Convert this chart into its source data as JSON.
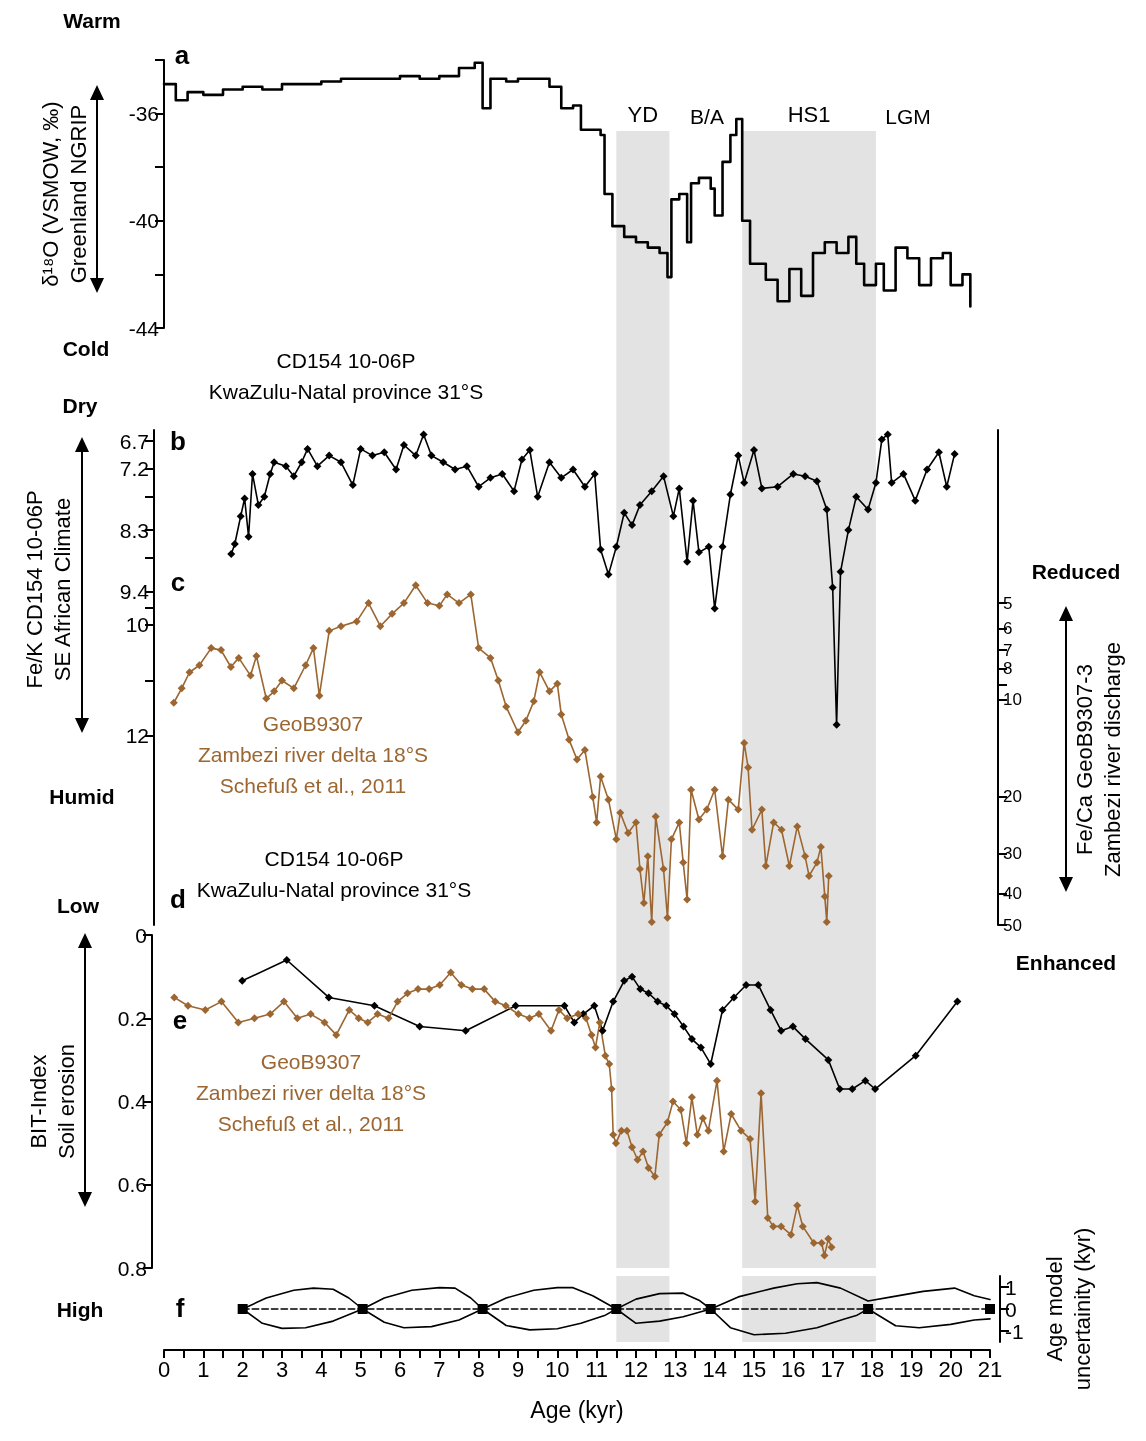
{
  "chart_data": [
    {
      "type": "step",
      "ylabel": "δ¹⁸O (VSMOW, ‰)\nGreenland NGRIP",
      "xlim": [
        0,
        21
      ],
      "ylim": [
        -44,
        -34
      ],
      "yticks": [
        {
          "value": -34,
          "label": null
        },
        -36,
        {
          "value": -38,
          "label": null
        },
        -40,
        {
          "value": -42,
          "label": null
        },
        -44
      ],
      "tick_labels": "y",
      "bands": [
        {
          "axis": "x",
          "from": 11.5,
          "to": 12.85,
          "label": "YD",
          "color": "#e3e3e3"
        },
        {
          "axis": "x",
          "from": 14.7,
          "to": 18.1,
          "label": "HS1",
          "color": "#e3e3e3"
        }
      ],
      "annotations": [
        "Warm",
        "Cold",
        "a",
        "B/A",
        "LGM"
      ],
      "series": [
        {
          "color": "#000000",
          "x": [
            0,
            0.3,
            0.6,
            1.0,
            1.5,
            2.0,
            2.5,
            3.0,
            3.5,
            4.0,
            4.5,
            5.0,
            5.5,
            6.0,
            6.5,
            7.0,
            7.5,
            7.9,
            8.1,
            8.3,
            8.7,
            9.0,
            9.5,
            9.8,
            10.1,
            10.4,
            10.6,
            10.9,
            11.1,
            11.2,
            11.4,
            11.7,
            12.0,
            12.3,
            12.6,
            12.8,
            12.9,
            13.1,
            13.3,
            13.4,
            13.6,
            13.9,
            14.0,
            14.2,
            14.4,
            14.55,
            14.7,
            14.9,
            15.3,
            15.6,
            15.9,
            16.2,
            16.5,
            16.8,
            17.1,
            17.4,
            17.6,
            17.8,
            18.1,
            18.3,
            18.6,
            18.9,
            19.2,
            19.5,
            19.8,
            20.0,
            20.3,
            20.5
          ],
          "values": [
            -34.9,
            -35.5,
            -35.2,
            -35.3,
            -35.1,
            -35.0,
            -35.1,
            -34.9,
            -34.9,
            -34.8,
            -34.7,
            -34.7,
            -34.7,
            -34.6,
            -34.7,
            -34.6,
            -34.3,
            -34.1,
            -35.8,
            -34.7,
            -34.8,
            -34.7,
            -34.7,
            -35.0,
            -35.8,
            -35.7,
            -36.6,
            -36.6,
            -36.8,
            -39.0,
            -40.2,
            -40.6,
            -40.8,
            -41.0,
            -41.2,
            -42.1,
            -39.2,
            -39.0,
            -40.8,
            -38.6,
            -38.4,
            -38.8,
            -39.8,
            -37.8,
            -36.8,
            -36.2,
            -40.0,
            -41.6,
            -42.2,
            -43.0,
            -41.8,
            -42.8,
            -41.2,
            -40.8,
            -41.2,
            -40.6,
            -41.6,
            -42.4,
            -41.6,
            -42.6,
            -41.0,
            -41.4,
            -42.4,
            -41.4,
            -41.2,
            -42.4,
            -42.0,
            -43.2
          ]
        }
      ]
    },
    {
      "type": "line",
      "ylabel": "Fe/K CD154 10-06P\nSE African Climate",
      "y2label": "Fe/Ca GeoB9307-3\nZambezi river discharge",
      "xlim": [
        0,
        21
      ],
      "ylim": [
        15.4,
        6.5
      ],
      "yticks": [
        6.7,
        7.2,
        {
          "value": 7.7,
          "label": null
        },
        8.3,
        {
          "value": 8.8,
          "label": null
        },
        9.4,
        {
          "value": 9.7,
          "label": null
        },
        10,
        {
          "value": 11,
          "label": null
        },
        12
      ],
      "y2lim": [
        50,
        1.45
      ],
      "y2ticks": [
        5,
        6,
        7,
        8,
        {
          "value": 9,
          "label": null
        },
        10,
        20,
        30,
        40,
        50
      ],
      "log": "y2",
      "marker": "diamond",
      "tick_labels": "y",
      "bands": [
        {
          "axis": "x",
          "from": 11.5,
          "to": 12.85,
          "color": "#e3e3e3"
        },
        {
          "axis": "x",
          "from": 14.7,
          "to": 18.1,
          "color": "#e3e3e3"
        }
      ],
      "annotations": [
        "CD154 10-06P\nKwaZulu-Natal province 31°S",
        "Dry",
        "b",
        "c",
        "GeoB9307\nZambezi river delta 18°S\nSchefuß et al., 2011",
        "Humid",
        "Reduced",
        "Enhanced"
      ],
      "series": [
        {
          "color": "#000000",
          "x": [
            1.71,
            1.8,
            1.95,
            2.05,
            2.15,
            2.25,
            2.4,
            2.55,
            2.7,
            2.8,
            3.1,
            3.3,
            3.5,
            3.65,
            3.9,
            4.2,
            4.5,
            4.8,
            5.0,
            5.3,
            5.6,
            5.9,
            6.1,
            6.4,
            6.6,
            6.8,
            7.1,
            7.4,
            7.7,
            8.0,
            8.3,
            8.6,
            8.9,
            9.1,
            9.3,
            9.5,
            9.8,
            10.1,
            10.4,
            10.7,
            10.95,
            11.1,
            11.3,
            11.5,
            11.7,
            11.9,
            12.1,
            12.4,
            12.7,
            12.95,
            13.1,
            13.3,
            13.45,
            13.6,
            13.85,
            14.0,
            14.2,
            14.4,
            14.6,
            14.75,
            15.0,
            15.2,
            15.6,
            16.0,
            16.3,
            16.6,
            16.85,
            17.0,
            17.1,
            17.2,
            17.4,
            17.6,
            17.9,
            18.1,
            18.25,
            18.4,
            18.5,
            18.8,
            19.1,
            19.4,
            19.7,
            19.9,
            20.1
          ],
          "values": [
            8.73,
            8.55,
            8.05,
            7.73,
            8.42,
            7.29,
            7.85,
            7.7,
            7.29,
            7.08,
            7.15,
            7.33,
            7.08,
            6.84,
            7.15,
            6.96,
            7.08,
            7.49,
            6.84,
            6.96,
            6.9,
            7.21,
            6.77,
            6.96,
            6.58,
            6.96,
            7.08,
            7.21,
            7.15,
            7.52,
            7.36,
            7.29,
            7.6,
            7.03,
            6.86,
            7.7,
            7.08,
            7.36,
            7.21,
            7.52,
            7.29,
            8.65,
            9.1,
            8.6,
            7.99,
            8.21,
            7.85,
            7.6,
            7.33,
            8.05,
            7.55,
            8.87,
            7.77,
            8.7,
            8.6,
            9.71,
            8.6,
            7.66,
            6.96,
            7.45,
            6.86,
            7.55,
            7.52,
            7.29,
            7.33,
            7.42,
            7.93,
            9.33,
            11.8,
            9.05,
            8.3,
            7.7,
            7.93,
            7.45,
            6.67,
            6.58,
            7.45,
            7.29,
            7.77,
            7.21,
            6.9,
            7.52,
            6.93
          ]
        },
        {
          "axis": "y2",
          "color": "#9c6631",
          "x": [
            0.25,
            0.45,
            0.65,
            0.9,
            1.2,
            1.45,
            1.7,
            1.9,
            2.2,
            2.35,
            2.6,
            2.8,
            3.0,
            3.3,
            3.6,
            3.8,
            3.95,
            4.2,
            4.5,
            4.9,
            5.2,
            5.5,
            5.8,
            6.1,
            6.4,
            6.7,
            7.0,
            7.2,
            7.5,
            7.8,
            8.0,
            8.3,
            8.5,
            8.7,
            9.0,
            9.2,
            9.4,
            9.55,
            9.8,
            10.0,
            10.1,
            10.3,
            10.5,
            10.7,
            10.9,
            11.0,
            11.1,
            11.3,
            11.5,
            11.6,
            11.8,
            12.0,
            12.1,
            12.2,
            12.3,
            12.4,
            12.5,
            12.7,
            12.8,
            12.9,
            13.1,
            13.2,
            13.3,
            13.4,
            13.6,
            13.8,
            14.0,
            14.2,
            14.35,
            14.6,
            14.75,
            14.85,
            14.95,
            15.2,
            15.3,
            15.5,
            15.7,
            15.9,
            16.1,
            16.3,
            16.4,
            16.6,
            16.7,
            16.8,
            16.85,
            16.9
          ],
          "values": [
            10.2,
            9.2,
            8.2,
            7.8,
            6.9,
            7.0,
            7.9,
            7.4,
            8.4,
            7.3,
            9.9,
            9.4,
            8.7,
            9.2,
            7.8,
            6.9,
            9.7,
            6.1,
            5.9,
            5.7,
            5.0,
            5.9,
            5.4,
            5.0,
            4.4,
            5.0,
            5.1,
            4.7,
            5.0,
            4.7,
            6.9,
            7.4,
            8.7,
            10.5,
            12.6,
            11.6,
            10.1,
            8.2,
            9.4,
            8.9,
            11.1,
            13.3,
            15.3,
            14.3,
            20.0,
            24.0,
            17.3,
            20.4,
            27.1,
            22.4,
            25.9,
            24.0,
            33.5,
            42.7,
            30.6,
            48.9,
            23.0,
            33.5,
            47.5,
            27.1,
            24.0,
            32.0,
            41.7,
            19.0,
            23.5,
            21.9,
            19.0,
            30.6,
            20.4,
            21.9,
            13.6,
            16.2,
            25.3,
            21.9,
            32.8,
            24.0,
            25.3,
            32.8,
            24.7,
            30.6,
            35.2,
            32.0,
            28.6,
            40.8,
            48.9,
            35.2
          ]
        }
      ]
    },
    {
      "type": "line",
      "ylabel": "BIT-Index\nSoil erosion",
      "xlim": [
        0,
        21
      ],
      "ylim": [
        0.8,
        0
      ],
      "yticks": [
        0,
        0.2,
        0.4,
        0.6,
        0.8
      ],
      "marker": "diamond",
      "tick_labels": "y",
      "bands": [
        {
          "axis": "x",
          "from": 11.5,
          "to": 12.85,
          "color": "#e3e3e3"
        },
        {
          "axis": "x",
          "from": 14.7,
          "to": 18.1,
          "color": "#e3e3e3"
        }
      ],
      "annotations": [
        "CD154 10-06P\nKwaZulu-Natal province 31°S",
        "Low",
        "d",
        "e",
        "GeoB9307\nZambezi river delta 18°S\nSchefuß et al., 2011"
      ],
      "series": [
        {
          "color": "#000000",
          "x": [
            1.99,
            3.12,
            4.19,
            5.35,
            6.5,
            7.67,
            8.94,
            10.18,
            10.43,
            10.66,
            10.94,
            11.15,
            11.42,
            11.7,
            11.9,
            12.11,
            12.32,
            12.55,
            12.77,
            12.98,
            13.21,
            13.42,
            13.65,
            13.9,
            14.2,
            14.49,
            14.8,
            15.11,
            15.42,
            15.69,
            15.99,
            16.31,
            16.89,
            17.18,
            17.5,
            17.83,
            18.08,
            19.11,
            20.17
          ],
          "values": [
            0.11,
            0.06,
            0.15,
            0.17,
            0.22,
            0.23,
            0.17,
            0.17,
            0.21,
            0.19,
            0.17,
            0.23,
            0.16,
            0.11,
            0.1,
            0.13,
            0.14,
            0.16,
            0.17,
            0.19,
            0.22,
            0.25,
            0.27,
            0.31,
            0.18,
            0.15,
            0.12,
            0.12,
            0.18,
            0.23,
            0.22,
            0.25,
            0.3,
            0.37,
            0.37,
            0.35,
            0.37,
            0.29,
            0.16
          ]
        },
        {
          "color": "#9c6631",
          "x": [
            0.26,
            0.61,
            1.05,
            1.46,
            1.89,
            2.3,
            2.7,
            3.05,
            3.39,
            3.73,
            4.08,
            4.38,
            4.71,
            4.95,
            5.18,
            5.43,
            5.71,
            5.94,
            6.19,
            6.46,
            6.74,
            7.01,
            7.29,
            7.56,
            7.84,
            8.14,
            8.42,
            8.69,
            9.01,
            9.29,
            9.53,
            9.84,
            10.04,
            10.25,
            10.53,
            10.73,
            10.87,
            10.97,
            11.08,
            11.22,
            11.32,
            11.38,
            11.42,
            11.49,
            11.63,
            11.77,
            11.9,
            12.04,
            12.18,
            12.32,
            12.48,
            12.59,
            12.8,
            12.94,
            13.14,
            13.28,
            13.42,
            13.56,
            13.7,
            13.84,
            14.06,
            14.23,
            14.42,
            14.67,
            14.9,
            15.03,
            15.18,
            15.35,
            15.49,
            15.69,
            15.94,
            16.1,
            16.24,
            16.52,
            16.72,
            16.79,
            16.89,
            16.97
          ],
          "values": [
            0.15,
            0.17,
            0.18,
            0.16,
            0.21,
            0.2,
            0.19,
            0.16,
            0.2,
            0.19,
            0.21,
            0.24,
            0.18,
            0.2,
            0.21,
            0.19,
            0.2,
            0.16,
            0.14,
            0.13,
            0.13,
            0.12,
            0.09,
            0.12,
            0.13,
            0.13,
            0.16,
            0.17,
            0.19,
            0.2,
            0.19,
            0.23,
            0.18,
            0.2,
            0.19,
            0.2,
            0.24,
            0.27,
            0.21,
            0.29,
            0.31,
            0.37,
            0.48,
            0.5,
            0.47,
            0.47,
            0.51,
            0.54,
            0.52,
            0.56,
            0.58,
            0.48,
            0.45,
            0.4,
            0.42,
            0.5,
            0.39,
            0.48,
            0.44,
            0.47,
            0.35,
            0.52,
            0.43,
            0.47,
            0.49,
            0.64,
            0.38,
            0.68,
            0.7,
            0.7,
            0.72,
            0.65,
            0.7,
            0.74,
            0.74,
            0.77,
            0.73,
            0.75
          ]
        }
      ]
    },
    {
      "type": "line",
      "xlabel": "Age (kyr)",
      "y2label": "Age model\nuncertainity (kyr)",
      "xlim": [
        0,
        21
      ],
      "xticks": [
        0,
        {
          "value": 0.5,
          "label": null
        },
        1,
        {
          "value": 1.5,
          "label": null
        },
        2,
        {
          "value": 2.5,
          "label": null
        },
        3,
        {
          "value": 3.5,
          "label": null
        },
        4,
        {
          "value": 4.5,
          "label": null
        },
        5,
        {
          "value": 5.5,
          "label": null
        },
        6,
        {
          "value": 6.5,
          "label": null
        },
        7,
        {
          "value": 7.5,
          "label": null
        },
        8,
        {
          "value": 8.5,
          "label": null
        },
        9,
        {
          "value": 9.5,
          "label": null
        },
        10,
        {
          "value": 10.5,
          "label": null
        },
        11,
        {
          "value": 11.5,
          "label": null
        },
        12,
        {
          "value": 12.5,
          "label": null
        },
        13,
        {
          "value": 13.5,
          "label": null
        },
        14,
        {
          "value": 14.5,
          "label": null
        },
        15,
        {
          "value": 15.5,
          "label": null
        },
        16,
        {
          "value": 16.5,
          "label": null
        },
        17,
        {
          "value": 17.5,
          "label": null
        },
        18,
        {
          "value": 18.5,
          "label": null
        },
        19,
        {
          "value": 19.5,
          "label": null
        },
        20,
        {
          "value": 20.5,
          "label": null
        },
        21
      ],
      "y2lim": [
        -1.5,
        1.5
      ],
      "y2ticks": [
        -1,
        0,
        1
      ],
      "bands": [
        {
          "axis": "x",
          "from": 11.5,
          "to": 12.85,
          "color": "#e3e3e3"
        },
        {
          "axis": "x",
          "from": 14.7,
          "to": 18.1,
          "color": "#e3e3e3"
        }
      ],
      "annotations": [
        "High",
        "f"
      ],
      "series": [
        {
          "axis": "y2",
          "color": "#000000",
          "marker": "square",
          "line_style": "dashed",
          "x": [
            2,
            5.05,
            8.1,
            11.5,
            13.9,
            17.9,
            21
          ],
          "values": [
            0,
            0,
            0,
            0,
            0,
            0,
            0
          ]
        },
        {
          "axis": "y2",
          "color": "#000000",
          "x": [
            2,
            2.6,
            3.3,
            3.8,
            4.3,
            4.7,
            5.05,
            5.6,
            6.3,
            7.0,
            7.4,
            7.8,
            8.1,
            8.7,
            9.4,
            10.0,
            10.4,
            10.9,
            11.5,
            12.0,
            12.6,
            13.2,
            13.6,
            13.9,
            14.6,
            15.5,
            16.1,
            16.6,
            17.2,
            17.9,
            18.5,
            19.3,
            20.1,
            20.6,
            21
          ],
          "values": [
            0,
            0.5,
            0.85,
            0.95,
            0.9,
            0.5,
            0,
            0.5,
            0.85,
            0.97,
            0.95,
            0.5,
            0,
            0.5,
            0.85,
            0.97,
            0.97,
            0.6,
            0,
            0.45,
            0.7,
            0.72,
            0.4,
            0,
            0.55,
            0.95,
            1.15,
            1.2,
            0.95,
            0.36,
            0.55,
            0.8,
            0.95,
            0.6,
            0.43
          ]
        },
        {
          "axis": "y2",
          "color": "#000000",
          "x": [
            2,
            2.5,
            3.0,
            3.6,
            4.3,
            5.05,
            5.6,
            6.1,
            6.8,
            7.5,
            8.1,
            8.7,
            9.3,
            10.0,
            10.6,
            11.2,
            11.5,
            12.0,
            12.6,
            13.2,
            13.9,
            14.4,
            15.0,
            15.8,
            16.6,
            17.3,
            17.6,
            17.9,
            18.6,
            19.2,
            20.0,
            20.6,
            21
          ],
          "values": [
            0,
            -0.65,
            -0.88,
            -0.85,
            -0.55,
            0,
            -0.6,
            -0.85,
            -0.8,
            -0.5,
            0,
            -0.75,
            -0.95,
            -0.9,
            -0.65,
            -0.3,
            0,
            -0.65,
            -0.55,
            -0.35,
            0,
            -0.85,
            -1.17,
            -1.1,
            -0.85,
            -0.45,
            -0.3,
            0,
            -0.76,
            -0.85,
            -0.7,
            -0.5,
            -0.45
          ]
        }
      ]
    }
  ]
}
